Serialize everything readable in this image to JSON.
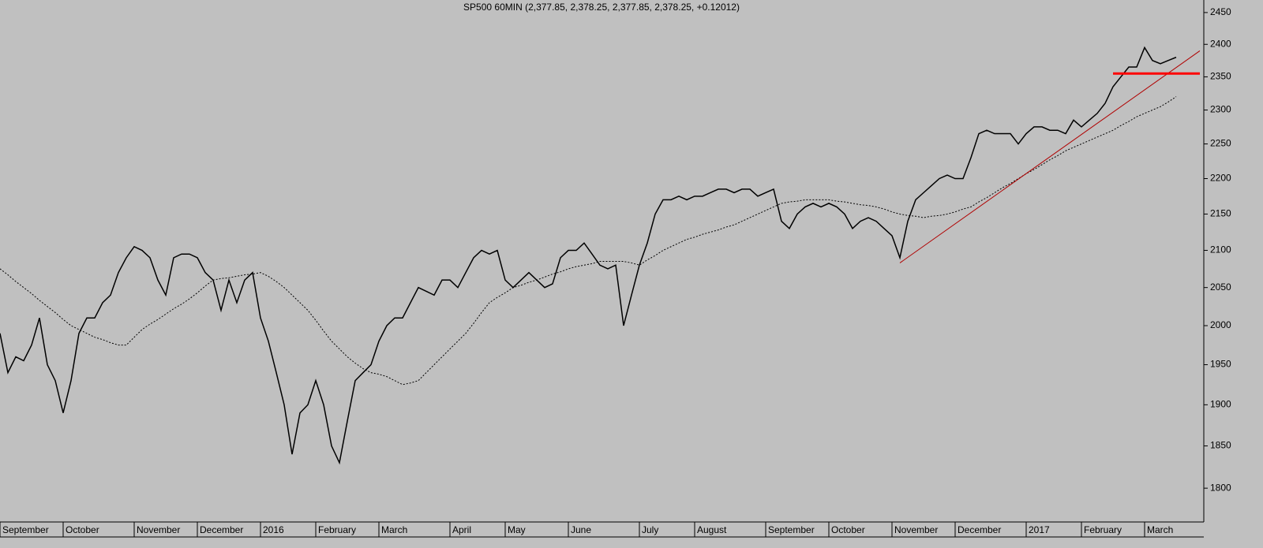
{
  "chart_data": {
    "type": "line",
    "title": "SP500 60MIN (2,377.85, 2,378.25, 2,377.85, 2,378.25, +0.12012)",
    "log_scale": true,
    "ylim": [
      1761,
      2470
    ],
    "yticks": [
      1800,
      1850,
      1900,
      1950,
      2000,
      2050,
      2100,
      2150,
      2200,
      2250,
      2300,
      2350,
      2400,
      2450
    ],
    "categories": [
      "September",
      null,
      null,
      null,
      null,
      null,
      null,
      null,
      "October",
      null,
      null,
      null,
      null,
      null,
      null,
      null,
      null,
      "November",
      null,
      null,
      null,
      null,
      null,
      null,
      null,
      "December",
      null,
      null,
      null,
      null,
      null,
      null,
      null,
      "2016",
      null,
      null,
      null,
      null,
      null,
      null,
      "February",
      null,
      null,
      null,
      null,
      null,
      null,
      null,
      "March",
      null,
      null,
      null,
      null,
      null,
      null,
      null,
      null,
      "April",
      null,
      null,
      null,
      null,
      null,
      null,
      "May",
      null,
      null,
      null,
      null,
      null,
      null,
      null,
      "June",
      null,
      null,
      null,
      null,
      null,
      null,
      null,
      null,
      "July",
      null,
      null,
      null,
      null,
      null,
      null,
      "August",
      null,
      null,
      null,
      null,
      null,
      null,
      null,
      null,
      "September",
      null,
      null,
      null,
      null,
      null,
      null,
      null,
      "October",
      null,
      null,
      null,
      null,
      null,
      null,
      null,
      "November",
      null,
      null,
      null,
      null,
      null,
      null,
      null,
      "December",
      null,
      null,
      null,
      null,
      null,
      null,
      null,
      null,
      "2017",
      null,
      null,
      null,
      null,
      null,
      null,
      "February",
      null,
      null,
      null,
      null,
      null,
      null,
      null,
      "March",
      null,
      null,
      null,
      null,
      null,
      null,
      null
    ],
    "series": [
      {
        "color": "#000000",
        "style": "solid",
        "values": [
          1990,
          1940,
          1960,
          1955,
          1975,
          2010,
          1950,
          1930,
          1890,
          1930,
          1990,
          2010,
          2010,
          2030,
          2040,
          2070,
          2090,
          2105,
          2100,
          2090,
          2060,
          2040,
          2090,
          2095,
          2095,
          2090,
          2070,
          2060,
          2020,
          2060,
          2030,
          2060,
          2070,
          2010,
          1980,
          1940,
          1900,
          1840,
          1890,
          1900,
          1930,
          1900,
          1850,
          1830,
          1880,
          1930,
          1940,
          1950,
          1980,
          2000,
          2010,
          2010,
          2030,
          2050,
          2045,
          2040,
          2060,
          2060,
          2050,
          2070,
          2090,
          2100,
          2095,
          2100,
          2060,
          2050,
          2060,
          2070,
          2060,
          2050,
          2055,
          2090,
          2100,
          2100,
          2110,
          2095,
          2080,
          2075,
          2080,
          2000,
          2040,
          2080,
          2110,
          2150,
          2170,
          2170,
          2175,
          2170,
          2175,
          2175,
          2180,
          2185,
          2185,
          2180,
          2185,
          2185,
          2175,
          2180,
          2185,
          2140,
          2130,
          2150,
          2160,
          2165,
          2160,
          2165,
          2160,
          2150,
          2130,
          2140,
          2145,
          2140,
          2130,
          2120,
          2090,
          2140,
          2170,
          2180,
          2190,
          2200,
          2205,
          2200,
          2200,
          2230,
          2265,
          2270,
          2265,
          2265,
          2265,
          2250,
          2265,
          2275,
          2275,
          2270,
          2270,
          2265,
          2285,
          2275,
          2285,
          2295,
          2310,
          2335,
          2350,
          2365,
          2365,
          2395,
          2375,
          2370,
          2375,
          2380,
          null,
          null,
          null
        ]
      },
      {
        "color": "#000000",
        "style": "dotted",
        "values": [
          2075,
          2067,
          2058,
          2050,
          2042,
          2033,
          2025,
          2017,
          2008,
          2000,
          1995,
          1990,
          1985,
          1982,
          1978,
          1975,
          1975,
          1985,
          1995,
          2002,
          2008,
          2015,
          2022,
          2028,
          2035,
          2043,
          2052,
          2060,
          2062,
          2063,
          2065,
          2067,
          2068,
          2070,
          2065,
          2058,
          2050,
          2040,
          2030,
          2020,
          2007,
          1993,
          1980,
          1970,
          1960,
          1952,
          1945,
          1940,
          1938,
          1935,
          1930,
          1925,
          1927,
          1930,
          1940,
          1950,
          1960,
          1970,
          1980,
          1990,
          2003,
          2017,
          2030,
          2037,
          2043,
          2050,
          2053,
          2057,
          2060,
          2064,
          2068,
          2071,
          2075,
          2078,
          2080,
          2082,
          2085,
          2085,
          2085,
          2085,
          2083,
          2080,
          2087,
          2093,
          2100,
          2105,
          2110,
          2115,
          2118,
          2122,
          2125,
          2128,
          2132,
          2135,
          2140,
          2145,
          2150,
          2155,
          2160,
          2165,
          2167,
          2168,
          2170,
          2170,
          2170,
          2170,
          2168,
          2167,
          2165,
          2163,
          2162,
          2160,
          2157,
          2153,
          2150,
          2148,
          2147,
          2145,
          2147,
          2148,
          2150,
          2153,
          2157,
          2160,
          2167,
          2173,
          2180,
          2187,
          2193,
          2200,
          2207,
          2213,
          2220,
          2227,
          2233,
          2240,
          2245,
          2250,
          2255,
          2260,
          2265,
          2270,
          2277,
          2283,
          2290,
          2295,
          2300,
          2305,
          2312,
          2320,
          null,
          null,
          null
        ]
      }
    ],
    "lines": [
      {
        "from": [
          114,
          2083
        ],
        "to": [
          152,
          2390
        ],
        "color": "#b00000",
        "width": 1
      },
      {
        "from": [
          141,
          2355
        ],
        "to": [
          152,
          2355
        ],
        "color": "#ff0000",
        "width": 3
      }
    ]
  }
}
